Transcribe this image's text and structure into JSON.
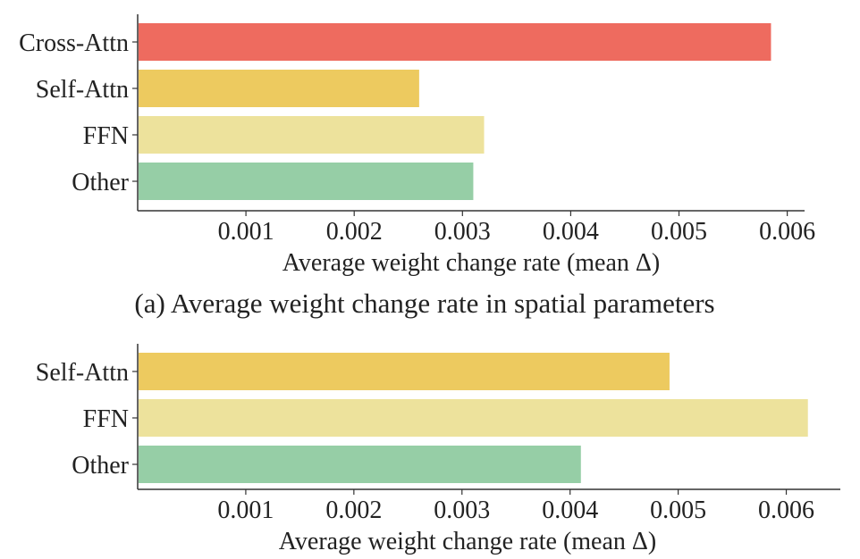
{
  "chart_data": [
    {
      "type": "bar",
      "orientation": "horizontal",
      "categories": [
        "Cross-Attn",
        "Self-Attn",
        "FFN",
        "Other"
      ],
      "values": [
        0.00585,
        0.0026,
        0.0032,
        0.0031
      ],
      "colors": [
        "#ee6b5f",
        "#edca5f",
        "#ede29c",
        "#96cea6"
      ],
      "xlabel": "Average weight change rate (mean Δ)",
      "xticks": [
        "0.001",
        "0.002",
        "0.003",
        "0.004",
        "0.005",
        "0.006"
      ],
      "xlim": [
        0,
        0.00616
      ],
      "caption": "(a) Average weight change rate in spatial parameters",
      "grid": false
    },
    {
      "type": "bar",
      "orientation": "horizontal",
      "categories": [
        "Self-Attn",
        "FFN",
        "Other"
      ],
      "values": [
        0.00492,
        0.0062,
        0.0041
      ],
      "colors": [
        "#edca5f",
        "#ede29c",
        "#96cea6"
      ],
      "xlabel": "Average weight change rate (mean Δ)",
      "xticks": [
        "0.001",
        "0.002",
        "0.003",
        "0.004",
        "0.005",
        "0.006"
      ],
      "xlim": [
        0,
        0.0065
      ],
      "caption": "",
      "grid": false
    }
  ]
}
